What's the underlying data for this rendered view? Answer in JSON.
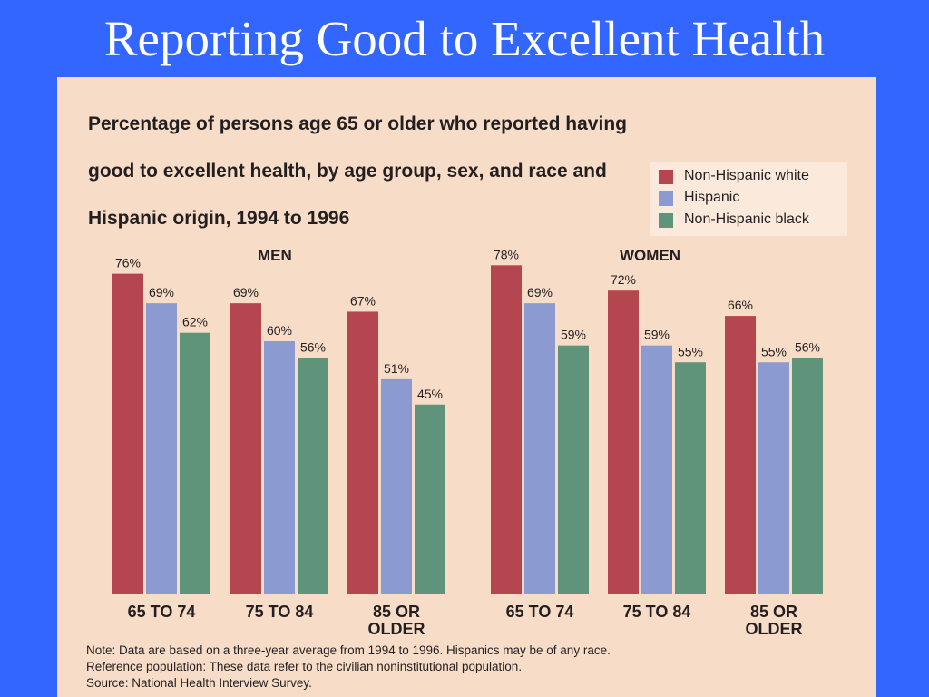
{
  "slide": {
    "title": "Reporting Good to Excellent Health"
  },
  "colors": {
    "background": "#3366ff",
    "panel": "#f7dcc8",
    "non_hispanic_white": "#b5464f",
    "hispanic": "#8b9bd1",
    "non_hispanic_black": "#5f947a"
  },
  "chart_data": {
    "type": "bar",
    "title": "Percentage of persons age 65 or older who reported having good to excellent health, by age group, sex, and race and Hispanic origin, 1994 to 1996",
    "title_lines": [
      "Percentage of persons age 65 or older who reported having",
      "good to excellent health, by age group, sex, and race and",
      "Hispanic origin, 1994 to 1996"
    ],
    "groups": [
      "MEN",
      "WOMEN"
    ],
    "categories": [
      "65 TO 74",
      "75 TO 84",
      "85 OR OLDER"
    ],
    "category_lines": [
      [
        "65 TO 74"
      ],
      [
        "75 TO 84"
      ],
      [
        "85 OR",
        "OLDER"
      ]
    ],
    "series": [
      {
        "name": "Non-Hispanic white",
        "color": "#b5464f",
        "men": [
          76,
          69,
          67
        ],
        "women": [
          78,
          72,
          66
        ]
      },
      {
        "name": "Hispanic",
        "color": "#8b9bd1",
        "men": [
          69,
          60,
          51
        ],
        "women": [
          69,
          59,
          55
        ]
      },
      {
        "name": "Non-Hispanic black",
        "color": "#5f947a",
        "men": [
          62,
          56,
          45
        ],
        "women": [
          59,
          55,
          56
        ]
      }
    ],
    "value_suffix": "%",
    "ylim": [
      0,
      100
    ],
    "grid": false,
    "legend_position": "top-right"
  },
  "notes": [
    "Note: Data are based on a three-year average from 1994 to 1996. Hispanics may be of any race.",
    "Reference population: These data refer to the civilian noninstitutional population.",
    "Source: National Health Interview Survey."
  ]
}
